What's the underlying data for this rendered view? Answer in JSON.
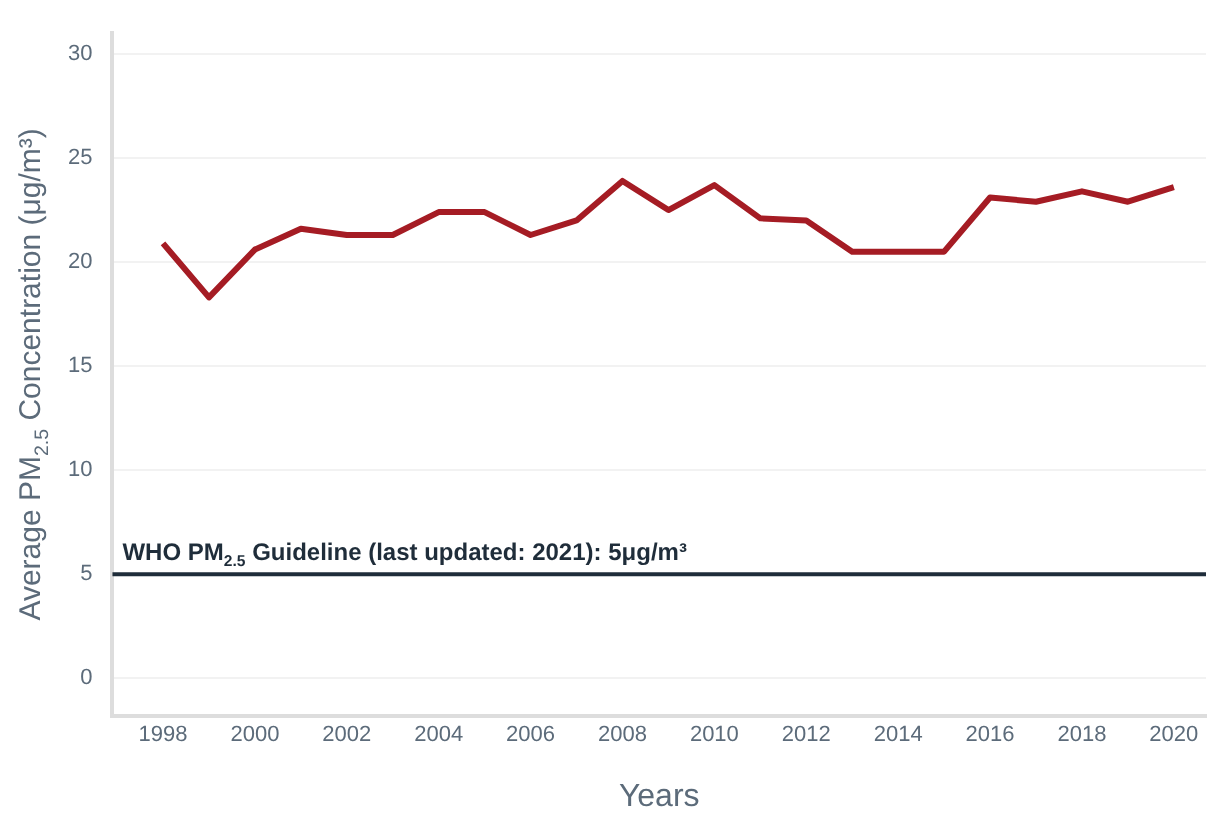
{
  "chart_data": {
    "type": "line",
    "xlabel": "Years",
    "ylabel": "Average PM$_{2.5}$ Concentration (μg/m³)",
    "x": [
      1998,
      1999,
      2000,
      2001,
      2002,
      2003,
      2004,
      2005,
      2006,
      2007,
      2008,
      2009,
      2010,
      2011,
      2012,
      2013,
      2014,
      2015,
      2016,
      2017,
      2018,
      2019,
      2020
    ],
    "series": [
      {
        "color": "#a51c24",
        "values": [
          20.9,
          18.3,
          20.6,
          21.6,
          21.3,
          21.3,
          22.4,
          22.4,
          21.3,
          22.0,
          23.9,
          22.5,
          23.7,
          22.1,
          22.0,
          20.5,
          20.5,
          20.5,
          23.1,
          22.9,
          23.4,
          22.9,
          23.6
        ]
      }
    ],
    "xlim": [
      1996.9,
      2020.7
    ],
    "xticks": [
      1998,
      2000,
      2002,
      2004,
      2006,
      2008,
      2010,
      2012,
      2014,
      2016,
      2018,
      2020
    ],
    "ylim": [
      -1.8,
      31
    ],
    "yticks": [
      0,
      5,
      10,
      15,
      20,
      25,
      30
    ],
    "ref_lines": [
      {
        "axis": "y",
        "value": 5,
        "label": "WHO PM$_{2.5}$ Guideline (last updated: 2021): 5μg/m³",
        "color": "#1f2d3a"
      }
    ],
    "grid": "y",
    "legend": false,
    "marker": "none",
    "line_style": "solid"
  }
}
